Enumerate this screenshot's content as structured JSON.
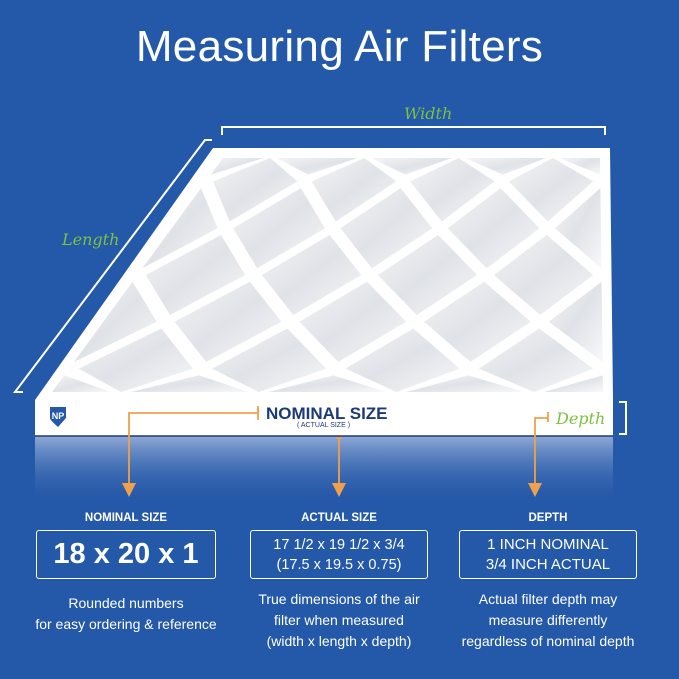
{
  "title": "Measuring Air Filters",
  "labels": {
    "width": "Width",
    "length": "Length",
    "depth": "Depth"
  },
  "filter_face": {
    "nominal": "NOMINAL SIZE",
    "actual": "( ACTUAL SIZE )",
    "logo": "NP"
  },
  "columns": [
    {
      "heading": "NOMINAL SIZE",
      "box": [
        "18 x 20 x 1"
      ],
      "description": [
        "Rounded numbers",
        "for easy ordering & reference"
      ]
    },
    {
      "heading": "ACTUAL SIZE",
      "box": [
        "17 1/2 x 19 1/2 x 3/4",
        "(17.5 x 19.5 x 0.75)"
      ],
      "description": [
        "True dimensions of the air",
        "filter when measured",
        "(width x length x depth)"
      ]
    },
    {
      "heading": "DEPTH",
      "box": [
        "1 INCH NOMINAL",
        "3/4 INCH ACTUAL"
      ],
      "description": [
        "Actual filter depth may",
        "measure differently",
        "regardless of nominal depth"
      ]
    }
  ],
  "colors": {
    "background": "#2458a8",
    "label_green": "#7dc142",
    "arrow_orange": "#f0a04b",
    "navy": "#1d3a78"
  }
}
